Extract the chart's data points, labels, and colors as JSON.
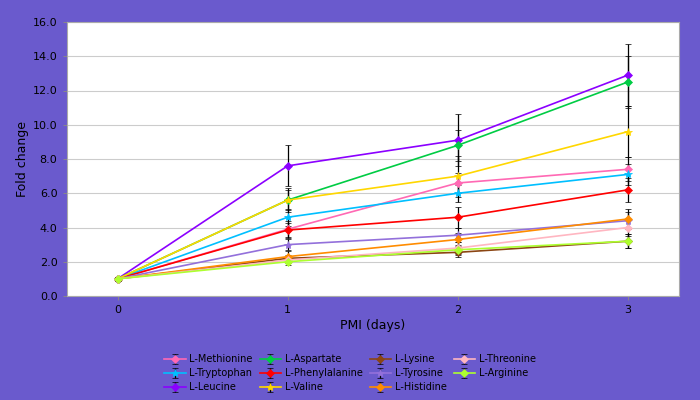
{
  "x": [
    0,
    1,
    2,
    3
  ],
  "series": [
    {
      "label": "L-Methionine",
      "color": "#FF69B4",
      "marker": "D",
      "values": [
        1.0,
        3.9,
        6.6,
        7.4
      ],
      "errors": [
        0.1,
        0.5,
        0.6,
        0.7
      ]
    },
    {
      "label": "L-Tryptophan",
      "color": "#00BFFF",
      "marker": "*",
      "values": [
        1.0,
        4.6,
        6.0,
        7.1
      ],
      "errors": [
        0.1,
        0.5,
        0.5,
        0.6
      ]
    },
    {
      "label": "L-Leucine",
      "color": "#8B00FF",
      "marker": "D",
      "values": [
        1.0,
        7.6,
        9.1,
        12.9
      ],
      "errors": [
        0.1,
        1.2,
        1.5,
        1.8
      ]
    },
    {
      "label": "L-Aspartate",
      "color": "#00CC44",
      "marker": "D",
      "values": [
        1.0,
        5.6,
        8.8,
        12.5
      ],
      "errors": [
        0.1,
        0.6,
        0.9,
        1.5
      ]
    },
    {
      "label": "L-Phenylalanine",
      "color": "#FF0000",
      "marker": "D",
      "values": [
        1.0,
        3.85,
        4.6,
        6.2
      ],
      "errors": [
        0.1,
        0.4,
        0.6,
        0.7
      ]
    },
    {
      "label": "L-Valine",
      "color": "#FFD700",
      "marker": "*",
      "values": [
        1.0,
        5.6,
        7.0,
        9.6
      ],
      "errors": [
        0.1,
        0.7,
        1.2,
        1.5
      ]
    },
    {
      "label": "L-Lysine",
      "color": "#8B4513",
      "marker": "D",
      "values": [
        1.0,
        2.2,
        2.55,
        3.2
      ],
      "errors": [
        0.05,
        0.2,
        0.3,
        0.4
      ]
    },
    {
      "label": "L-Tyrosine",
      "color": "#9370DB",
      "marker": "*",
      "values": [
        1.0,
        3.0,
        3.55,
        4.4
      ],
      "errors": [
        0.05,
        0.3,
        0.4,
        0.5
      ]
    },
    {
      "label": "L-Histidine",
      "color": "#FF8C00",
      "marker": "D",
      "values": [
        1.0,
        2.3,
        3.3,
        4.5
      ],
      "errors": [
        0.05,
        0.3,
        0.4,
        0.6
      ]
    },
    {
      "label": "L-Threonine",
      "color": "#FFB6C1",
      "marker": "D",
      "values": [
        1.0,
        2.1,
        2.8,
        4.0
      ],
      "errors": [
        0.05,
        0.2,
        0.35,
        0.5
      ]
    },
    {
      "label": "L-Arginine",
      "color": "#ADFF2F",
      "marker": "D",
      "values": [
        1.0,
        2.0,
        2.7,
        3.2
      ],
      "errors": [
        0.05,
        0.2,
        0.3,
        0.4
      ]
    }
  ],
  "xlabel": "PMI (days)",
  "ylabel": "Fold change",
  "ylim": [
    0.0,
    16.0
  ],
  "yticks": [
    0.0,
    2.0,
    4.0,
    6.0,
    8.0,
    10.0,
    12.0,
    14.0,
    16.0
  ],
  "xticks": [
    0,
    1,
    2,
    3
  ],
  "background_color": "#FFFFFF",
  "outer_background": "#6A5ACD",
  "grid_color": "#CCCCCC",
  "label_fontsize": 9,
  "legend_fontsize": 7.0,
  "tick_fontsize": 8
}
